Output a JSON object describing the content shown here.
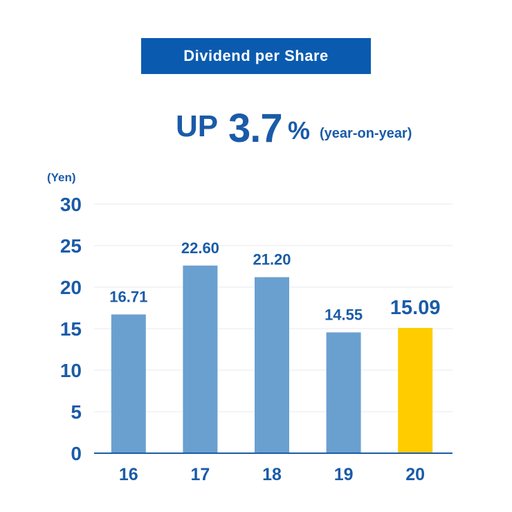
{
  "title": "Dividend per Share",
  "headline": {
    "prefix": "UP",
    "value": "3.7",
    "unit": "%",
    "note": "(year-on-year)"
  },
  "colors": {
    "bar": "#6aa0d0",
    "highlight": "#ffcc00",
    "text": "#1a5ba8",
    "title_bg": "#0a5bb0",
    "grid": "#e5eaf2",
    "axis": "#1a5ba8"
  },
  "chart_data": {
    "type": "bar",
    "categories": [
      "16",
      "17",
      "18",
      "19",
      "20"
    ],
    "values": [
      16.71,
      22.6,
      21.2,
      14.55,
      15.09
    ],
    "labels": [
      "16.71",
      "22.60",
      "21.20",
      "14.55",
      "15.09"
    ],
    "highlight_index": 4,
    "ylabel": "(Yen)",
    "ylim": [
      0,
      30
    ],
    "yticks": [
      0,
      5,
      10,
      15,
      20,
      25,
      30
    ],
    "grid": true
  }
}
